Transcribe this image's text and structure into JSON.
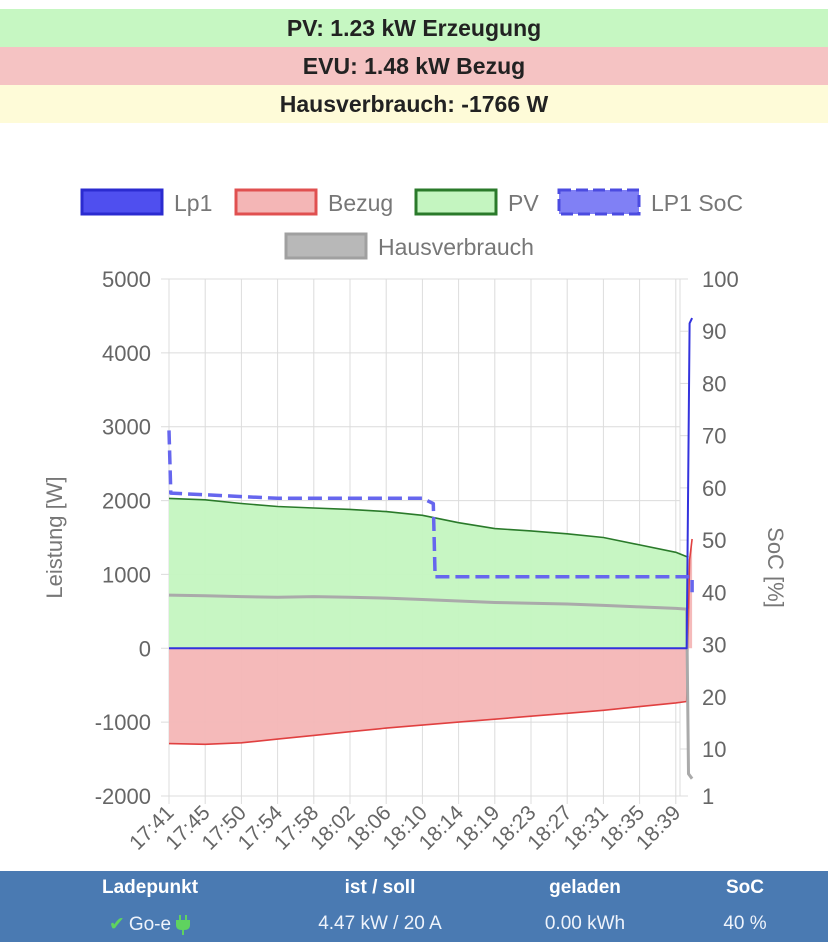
{
  "summary": {
    "pv": "PV: 1.23 kW Erzeugung",
    "evu": "EVU: 1.48 kW Bezug",
    "hausverbrauch": "Hausverbrauch: -1766 W"
  },
  "colors": {
    "pv_bg": "#c6f7c2",
    "evu_bg": "#f5c3c3",
    "house_bg": "#fefbd8",
    "lp1": "#3333dd",
    "bezug_fill": "#f4b6b6",
    "bezug_line": "#e04040",
    "pv_fill": "#c4f5c0",
    "pv_line": "#2a7a2a",
    "soc": "#6666ee",
    "haus": "#aaaaaa",
    "footer": "#4a7ab2"
  },
  "chart_data": {
    "type": "line",
    "ylabel": "Leistung [W]",
    "y2label": "SoC [%]",
    "ylim": [
      -2000,
      5000
    ],
    "y2lim": [
      1,
      100
    ],
    "yticks": [
      "5000",
      "4000",
      "3000",
      "2000",
      "1000",
      "0",
      "-1000",
      "-2000"
    ],
    "y2ticks": [
      "100",
      "90",
      "80",
      "70",
      "60",
      "50",
      "40",
      "30",
      "20",
      "10",
      "1"
    ],
    "categories": [
      "17:41",
      "17:45",
      "17:50",
      "17:54",
      "17:58",
      "18:02",
      "18:06",
      "18:10",
      "18:14",
      "18:19",
      "18:23",
      "18:27",
      "18:31",
      "18:35",
      "18:39"
    ],
    "grid": true,
    "legend_position": "top",
    "legend": [
      {
        "name": "Lp1",
        "style": "solid",
        "key": "lp1"
      },
      {
        "name": "Bezug",
        "style": "solid",
        "key": "bezug"
      },
      {
        "name": "PV",
        "style": "solid",
        "key": "pv"
      },
      {
        "name": "LP1 SoC",
        "style": "dashed",
        "key": "soc"
      },
      {
        "name": "Hausverbrauch",
        "style": "solid",
        "key": "haus"
      }
    ],
    "series": [
      {
        "name": "PV",
        "axis": "left",
        "points": [
          [
            0,
            2030
          ],
          [
            1,
            2010
          ],
          [
            2,
            1960
          ],
          [
            3,
            1920
          ],
          [
            4,
            1900
          ],
          [
            5,
            1880
          ],
          [
            6,
            1850
          ],
          [
            7,
            1800
          ],
          [
            8,
            1700
          ],
          [
            9,
            1620
          ],
          [
            10,
            1590
          ],
          [
            11,
            1550
          ],
          [
            12,
            1500
          ],
          [
            13,
            1400
          ],
          [
            14,
            1300
          ],
          [
            14.35,
            1230
          ]
        ]
      },
      {
        "name": "Bezug",
        "axis": "left",
        "points": [
          [
            0,
            -1290
          ],
          [
            1,
            -1300
          ],
          [
            2,
            -1280
          ],
          [
            3,
            -1230
          ],
          [
            4,
            -1180
          ],
          [
            5,
            -1130
          ],
          [
            6,
            -1080
          ],
          [
            7,
            -1040
          ],
          [
            8,
            -1000
          ],
          [
            9,
            -960
          ],
          [
            10,
            -920
          ],
          [
            11,
            -880
          ],
          [
            12,
            -840
          ],
          [
            13,
            -790
          ],
          [
            14,
            -740
          ],
          [
            14.3,
            -720
          ],
          [
            14.38,
            1200
          ],
          [
            14.45,
            1480
          ]
        ]
      },
      {
        "name": "Hausverbrauch",
        "axis": "left",
        "points": [
          [
            0,
            720
          ],
          [
            1,
            710
          ],
          [
            2,
            700
          ],
          [
            3,
            690
          ],
          [
            4,
            700
          ],
          [
            5,
            690
          ],
          [
            6,
            680
          ],
          [
            7,
            660
          ],
          [
            8,
            640
          ],
          [
            9,
            620
          ],
          [
            10,
            610
          ],
          [
            11,
            600
          ],
          [
            12,
            580
          ],
          [
            13,
            560
          ],
          [
            14,
            540
          ],
          [
            14.3,
            530
          ],
          [
            14.35,
            -1700
          ],
          [
            14.45,
            -1766
          ]
        ]
      },
      {
        "name": "Lp1",
        "axis": "left",
        "points": [
          [
            0,
            0
          ],
          [
            14.3,
            0
          ],
          [
            14.38,
            4400
          ],
          [
            14.45,
            4470
          ]
        ]
      },
      {
        "name": "LP1 SoC",
        "axis": "right",
        "points": [
          [
            0,
            71
          ],
          [
            0.05,
            59
          ],
          [
            3,
            58
          ],
          [
            7,
            58
          ],
          [
            7.3,
            57
          ],
          [
            7.35,
            43
          ],
          [
            14.45,
            43
          ],
          [
            14.45,
            40
          ]
        ]
      }
    ]
  },
  "footer": {
    "headers": [
      "Ladepunkt",
      "ist / soll",
      "geladen",
      "SoC"
    ],
    "ladepunkt": "Go-e",
    "ist_soll": "4.47 kW / 20 A",
    "geladen": "0.00 kWh",
    "soc": "40 %"
  }
}
